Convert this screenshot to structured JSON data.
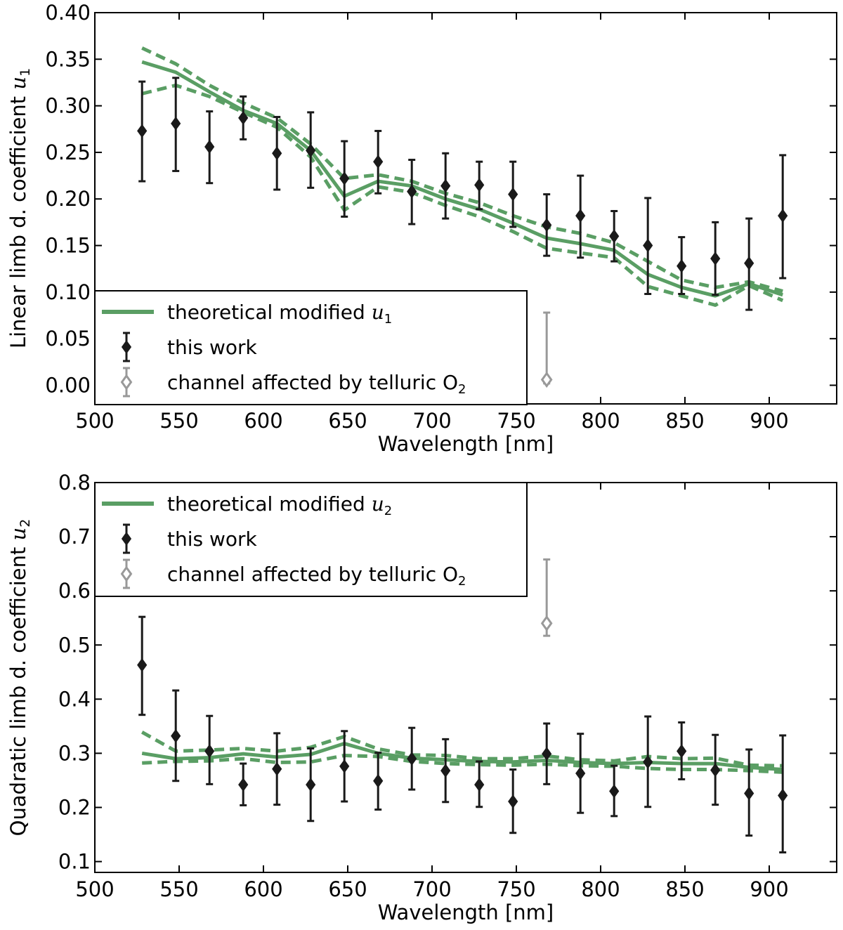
{
  "chart_data": [
    {
      "type": "line",
      "id": "top",
      "xlabel": "Wavelength [nm]",
      "ylabel_text": "Linear limb d. coefficient ",
      "ylabel_math": "u",
      "ylabel_sub": "1",
      "xlim": [
        500,
        940
      ],
      "ylim": [
        -0.02,
        0.4
      ],
      "xticks": [
        500,
        550,
        600,
        650,
        700,
        750,
        800,
        850,
        900
      ],
      "xtick_labels": [
        "500",
        "550",
        "600",
        "650",
        "700",
        "750",
        "800",
        "850",
        "900"
      ],
      "yticks": [
        0.0,
        0.05,
        0.1,
        0.15,
        0.2,
        0.25,
        0.3,
        0.35,
        0.4
      ],
      "ytick_labels": [
        "0.00",
        "0.05",
        "0.10",
        "0.15",
        "0.20",
        "0.25",
        "0.30",
        "0.35",
        "0.40"
      ],
      "legend": {
        "position": "bottom-left",
        "entries": [
          {
            "key": "model",
            "text": "theoretical modified ",
            "math": "u",
            "sub": "1"
          },
          {
            "key": "data",
            "text": "this work"
          },
          {
            "key": "o2",
            "text": "channel affected by telluric O",
            "sub": "2"
          }
        ]
      },
      "model_x": [
        528,
        548,
        568,
        588,
        608,
        628,
        648,
        668,
        688,
        708,
        728,
        748,
        768,
        788,
        808,
        828,
        848,
        868,
        888,
        908
      ],
      "model": [
        0.347,
        0.336,
        0.315,
        0.295,
        0.281,
        0.252,
        0.203,
        0.219,
        0.214,
        0.2,
        0.189,
        0.174,
        0.158,
        0.152,
        0.145,
        0.119,
        0.105,
        0.096,
        0.109,
        0.097
      ],
      "model_upper": [
        0.362,
        0.345,
        0.322,
        0.303,
        0.287,
        0.259,
        0.222,
        0.226,
        0.219,
        0.206,
        0.196,
        0.182,
        0.17,
        0.163,
        0.153,
        0.133,
        0.113,
        0.105,
        0.111,
        0.101
      ],
      "model_lower": [
        0.313,
        0.322,
        0.31,
        0.293,
        0.277,
        0.245,
        0.188,
        0.213,
        0.207,
        0.193,
        0.181,
        0.165,
        0.147,
        0.142,
        0.137,
        0.106,
        0.096,
        0.086,
        0.107,
        0.091
      ],
      "series": [
        {
          "name": "this work",
          "x": [
            528,
            548,
            568,
            588,
            608,
            628,
            648,
            668,
            688,
            708,
            728,
            748,
            768,
            788,
            808,
            828,
            848,
            868,
            888,
            908
          ],
          "y": [
            0.273,
            0.281,
            0.256,
            0.287,
            0.249,
            0.252,
            0.222,
            0.24,
            0.208,
            0.214,
            0.215,
            0.205,
            0.172,
            0.182,
            0.16,
            0.15,
            0.128,
            0.136,
            0.131,
            0.182
          ],
          "err_low": [
            0.219,
            0.23,
            0.217,
            0.264,
            0.21,
            0.212,
            0.181,
            0.206,
            0.173,
            0.179,
            0.189,
            0.17,
            0.139,
            0.137,
            0.133,
            0.098,
            0.098,
            0.097,
            0.081,
            0.115
          ],
          "err_high": [
            0.326,
            0.33,
            0.294,
            0.31,
            0.288,
            0.293,
            0.262,
            0.273,
            0.242,
            0.249,
            0.24,
            0.24,
            0.205,
            0.225,
            0.187,
            0.201,
            0.159,
            0.175,
            0.179,
            0.247
          ]
        },
        {
          "name": "channel affected by telluric O2",
          "x": [
            768
          ],
          "y": [
            0.006
          ],
          "err_low": [
            0.002
          ],
          "err_high": [
            0.078
          ]
        }
      ]
    },
    {
      "type": "line",
      "id": "bottom",
      "xlabel": "Wavelength [nm]",
      "ylabel_text": "Quadratic limb d. coefficient ",
      "ylabel_math": "u",
      "ylabel_sub": "2",
      "xlim": [
        500,
        940
      ],
      "ylim": [
        0.08,
        0.8
      ],
      "xticks": [
        500,
        550,
        600,
        650,
        700,
        750,
        800,
        850,
        900
      ],
      "xtick_labels": [
        "500",
        "550",
        "600",
        "650",
        "700",
        "750",
        "800",
        "850",
        "900"
      ],
      "yticks": [
        0.1,
        0.2,
        0.3,
        0.4,
        0.5,
        0.6,
        0.7,
        0.8
      ],
      "ytick_labels": [
        "0.1",
        "0.2",
        "0.3",
        "0.4",
        "0.5",
        "0.6",
        "0.7",
        "0.8"
      ],
      "legend": {
        "position": "top-left",
        "entries": [
          {
            "key": "model",
            "text": "theoretical modified ",
            "math": "u",
            "sub": "2"
          },
          {
            "key": "data",
            "text": "this work"
          },
          {
            "key": "o2",
            "text": "channel affected by telluric O",
            "sub": "2"
          }
        ]
      },
      "model_x": [
        528,
        548,
        568,
        588,
        608,
        628,
        648,
        668,
        688,
        708,
        728,
        748,
        768,
        788,
        808,
        828,
        848,
        868,
        888,
        908
      ],
      "model": [
        0.3,
        0.29,
        0.292,
        0.299,
        0.293,
        0.298,
        0.318,
        0.3,
        0.291,
        0.288,
        0.285,
        0.284,
        0.287,
        0.283,
        0.281,
        0.283,
        0.281,
        0.281,
        0.274,
        0.27
      ],
      "model_upper": [
        0.339,
        0.304,
        0.306,
        0.309,
        0.304,
        0.311,
        0.331,
        0.308,
        0.297,
        0.296,
        0.29,
        0.29,
        0.295,
        0.288,
        0.286,
        0.294,
        0.29,
        0.291,
        0.278,
        0.277
      ],
      "model_lower": [
        0.282,
        0.285,
        0.286,
        0.29,
        0.283,
        0.284,
        0.296,
        0.294,
        0.285,
        0.281,
        0.279,
        0.278,
        0.28,
        0.277,
        0.276,
        0.272,
        0.27,
        0.27,
        0.268,
        0.265
      ],
      "series": [
        {
          "name": "this work",
          "x": [
            528,
            548,
            568,
            588,
            608,
            628,
            648,
            668,
            688,
            708,
            728,
            748,
            768,
            788,
            808,
            828,
            848,
            868,
            888,
            908
          ],
          "y": [
            0.463,
            0.332,
            0.304,
            0.242,
            0.271,
            0.242,
            0.276,
            0.249,
            0.29,
            0.268,
            0.242,
            0.211,
            0.299,
            0.263,
            0.23,
            0.284,
            0.304,
            0.269,
            0.226,
            0.222
          ],
          "err_low": [
            0.371,
            0.249,
            0.243,
            0.204,
            0.205,
            0.175,
            0.211,
            0.196,
            0.233,
            0.21,
            0.201,
            0.153,
            0.243,
            0.19,
            0.184,
            0.201,
            0.252,
            0.205,
            0.148,
            0.117
          ],
          "err_high": [
            0.552,
            0.416,
            0.369,
            0.281,
            0.337,
            0.309,
            0.341,
            0.301,
            0.347,
            0.326,
            0.285,
            0.27,
            0.355,
            0.336,
            0.277,
            0.368,
            0.357,
            0.334,
            0.307,
            0.333
          ]
        },
        {
          "name": "channel affected by telluric O2",
          "x": [
            768
          ],
          "y": [
            0.54
          ],
          "err_low": [
            0.517
          ],
          "err_high": [
            0.658
          ]
        }
      ]
    }
  ],
  "colors": {
    "model": "#5a9e64",
    "data": "#1a1a1a",
    "o2": "#999999",
    "axes": "#000000"
  }
}
